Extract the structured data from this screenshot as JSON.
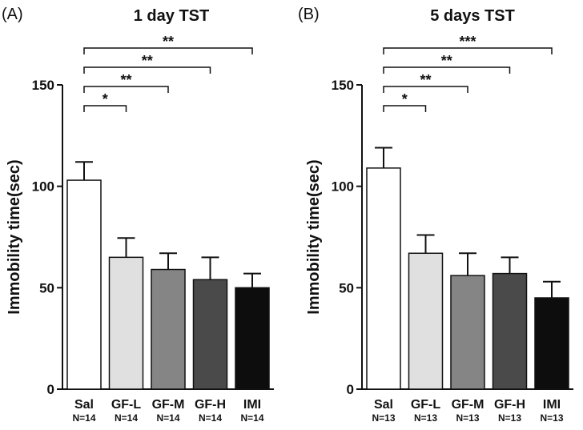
{
  "chart_data": [
    {
      "type": "bar",
      "panel_label": "(A)",
      "title": "1 day TST",
      "ylabel": "Immobility time(sec)",
      "xlabel": "",
      "ylim": [
        0,
        150
      ],
      "yticks": [
        0,
        50,
        100,
        150
      ],
      "categories": [
        "Sal",
        "GF-L",
        "GF-M",
        "GF-H",
        "IMI"
      ],
      "n_labels": [
        "N=14",
        "N=14",
        "N=14",
        "N=14",
        "N=14"
      ],
      "values": [
        103,
        65,
        59,
        54,
        50
      ],
      "errors": [
        9,
        9.5,
        8,
        11,
        7
      ],
      "bar_colors": [
        "#ffffff",
        "#e0e0e0",
        "#858585",
        "#4a4a4a",
        "#0d0d0d"
      ],
      "comparisons": [
        {
          "from": "Sal",
          "to": "GF-L",
          "label": "*"
        },
        {
          "from": "Sal",
          "to": "GF-M",
          "label": "**"
        },
        {
          "from": "Sal",
          "to": "GF-H",
          "label": "**"
        },
        {
          "from": "Sal",
          "to": "IMI",
          "label": "**"
        }
      ]
    },
    {
      "type": "bar",
      "panel_label": "(B)",
      "title": "5 days TST",
      "ylabel": "Immobility time(sec)",
      "xlabel": "",
      "ylim": [
        0,
        150
      ],
      "yticks": [
        0,
        50,
        100,
        150
      ],
      "categories": [
        "Sal",
        "GF-L",
        "GF-M",
        "GF-H",
        "IMI"
      ],
      "n_labels": [
        "N=13",
        "N=13",
        "N=13",
        "N=13",
        "N=13"
      ],
      "values": [
        109,
        67,
        56,
        57,
        45
      ],
      "errors": [
        10,
        9,
        11,
        8,
        8
      ],
      "bar_colors": [
        "#ffffff",
        "#e0e0e0",
        "#858585",
        "#4a4a4a",
        "#0d0d0d"
      ],
      "comparisons": [
        {
          "from": "Sal",
          "to": "GF-L",
          "label": "*"
        },
        {
          "from": "Sal",
          "to": "GF-M",
          "label": "**"
        },
        {
          "from": "Sal",
          "to": "GF-H",
          "label": "**"
        },
        {
          "from": "Sal",
          "to": "IMI",
          "label": "***"
        }
      ]
    }
  ]
}
